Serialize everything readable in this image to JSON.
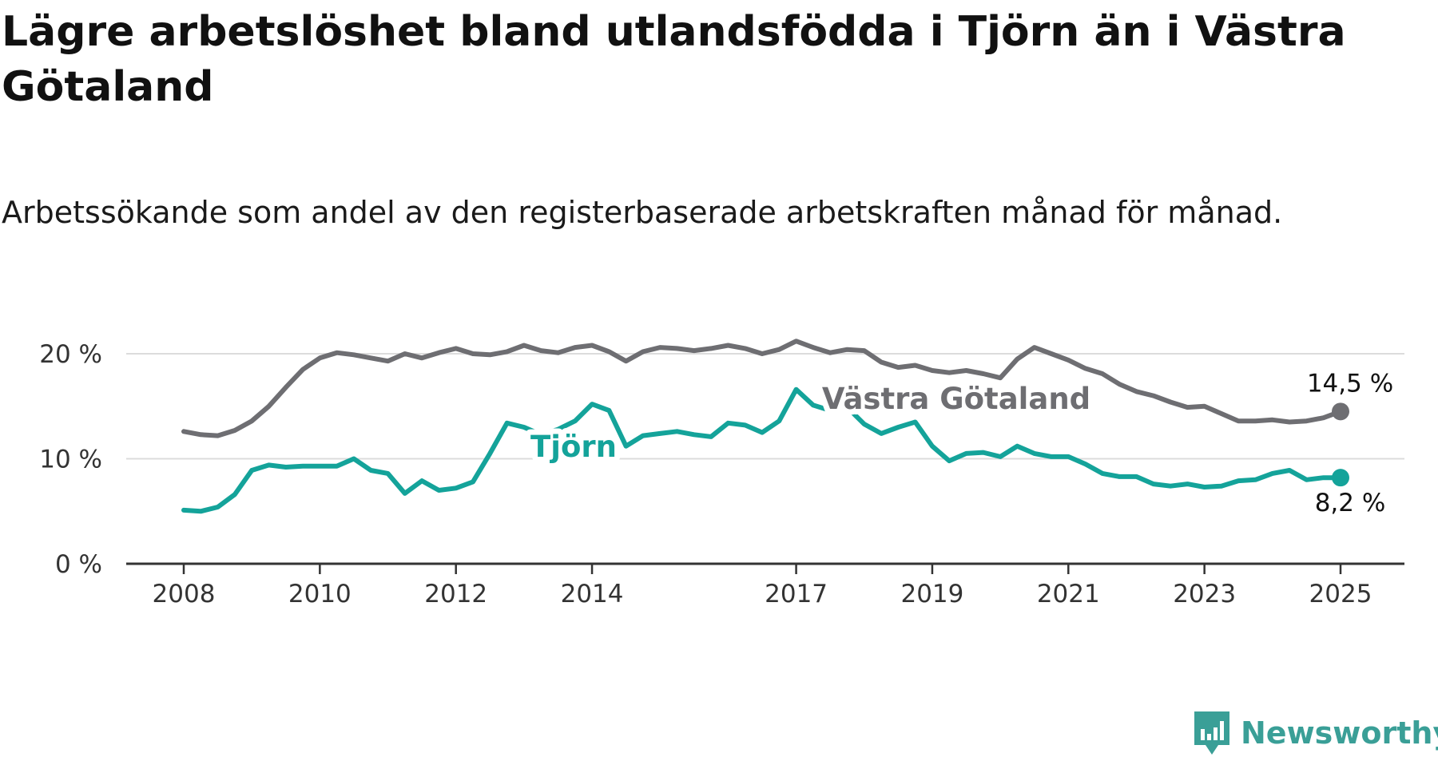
{
  "title": "Lägre arbetslöshet bland utlandsfödda i Tjörn än i Västra Götaland",
  "subtitle": "Arbetssökande som andel av den registerbaserade arbetskraften månad för månad.",
  "brand": {
    "name": "Newsworthy",
    "icon": "newsworthy-logo-icon",
    "color": "#3a9f97"
  },
  "chart_data": {
    "type": "line",
    "y_ticks": [
      {
        "value": 0,
        "label": "0 %"
      },
      {
        "value": 10,
        "label": "10 %"
      },
      {
        "value": 20,
        "label": "20 %"
      }
    ],
    "ylim": [
      0,
      21.5
    ],
    "x_ticks": [
      {
        "value": 2008.0,
        "label": "2008"
      },
      {
        "value": 2010.0,
        "label": "2010"
      },
      {
        "value": 2012.0,
        "label": "2012"
      },
      {
        "value": 2014.0,
        "label": "2014"
      },
      {
        "value": 2017.0,
        "label": "2017"
      },
      {
        "value": 2019.0,
        "label": "2019"
      },
      {
        "value": 2021.0,
        "label": "2021"
      },
      {
        "value": 2023.0,
        "label": "2023"
      },
      {
        "value": 2025.0,
        "label": "2025"
      }
    ],
    "xlim": [
      2007.85,
      2026.0
    ],
    "grid": true,
    "series": [
      {
        "name": "Västra Götaland",
        "color": "#6e6e72",
        "end_label": "14,5 %",
        "x": [
          2008.0,
          2008.25,
          2008.5,
          2008.75,
          2009.0,
          2009.25,
          2009.5,
          2009.75,
          2010.0,
          2010.25,
          2010.5,
          2010.75,
          2011.0,
          2011.25,
          2011.5,
          2011.75,
          2012.0,
          2012.25,
          2012.5,
          2012.75,
          2013.0,
          2013.25,
          2013.5,
          2013.75,
          2014.0,
          2014.25,
          2014.5,
          2014.75,
          2015.0,
          2015.25,
          2015.5,
          2015.75,
          2016.0,
          2016.25,
          2016.5,
          2016.75,
          2017.0,
          2017.25,
          2017.5,
          2017.75,
          2018.0,
          2018.25,
          2018.5,
          2018.75,
          2019.0,
          2019.25,
          2019.5,
          2019.75,
          2020.0,
          2020.25,
          2020.5,
          2020.75,
          2021.0,
          2021.25,
          2021.5,
          2021.75,
          2022.0,
          2022.25,
          2022.5,
          2022.75,
          2023.0,
          2023.25,
          2023.5,
          2023.75,
          2024.0,
          2024.25,
          2024.5,
          2024.75,
          2025.0
        ],
        "y": [
          12.6,
          12.3,
          12.2,
          12.7,
          13.6,
          15.0,
          16.8,
          18.5,
          19.6,
          20.1,
          19.9,
          19.6,
          19.3,
          20.0,
          19.6,
          20.1,
          20.5,
          20.0,
          19.9,
          20.2,
          20.8,
          20.3,
          20.1,
          20.6,
          20.8,
          20.2,
          19.3,
          20.2,
          20.6,
          20.5,
          20.3,
          20.5,
          20.8,
          20.5,
          20.0,
          20.4,
          21.2,
          20.6,
          20.1,
          20.4,
          20.3,
          19.2,
          18.7,
          18.9,
          18.4,
          18.2,
          18.4,
          18.1,
          17.7,
          19.5,
          20.6,
          20.0,
          19.4,
          18.6,
          18.1,
          17.1,
          16.4,
          16.0,
          15.4,
          14.9,
          15.0,
          14.3,
          13.6,
          13.6,
          13.7,
          13.5,
          13.6,
          13.9,
          14.5
        ]
      },
      {
        "name": "Tjörn",
        "color": "#14a39a",
        "end_label": "8,2 %",
        "x": [
          2008.0,
          2008.25,
          2008.5,
          2008.75,
          2009.0,
          2009.25,
          2009.5,
          2009.75,
          2010.0,
          2010.25,
          2010.5,
          2010.75,
          2011.0,
          2011.25,
          2011.5,
          2011.75,
          2012.0,
          2012.25,
          2012.5,
          2012.75,
          2013.0,
          2013.25,
          2013.5,
          2013.75,
          2014.0,
          2014.25,
          2014.5,
          2014.75,
          2015.0,
          2015.25,
          2015.5,
          2015.75,
          2016.0,
          2016.25,
          2016.5,
          2016.75,
          2017.0,
          2017.25,
          2017.5,
          2017.75,
          2018.0,
          2018.25,
          2018.5,
          2018.75,
          2019.0,
          2019.25,
          2019.5,
          2019.75,
          2020.0,
          2020.25,
          2020.5,
          2020.75,
          2021.0,
          2021.25,
          2021.5,
          2021.75,
          2022.0,
          2022.25,
          2022.5,
          2022.75,
          2023.0,
          2023.25,
          2023.5,
          2023.75,
          2024.0,
          2024.25,
          2024.5,
          2024.75,
          2025.0
        ],
        "y": [
          5.1,
          5.0,
          5.4,
          6.6,
          8.9,
          9.4,
          9.2,
          9.3,
          9.3,
          9.3,
          10.0,
          8.9,
          8.6,
          6.7,
          7.9,
          7.0,
          7.2,
          7.8,
          10.5,
          13.4,
          13.0,
          12.3,
          12.8,
          13.6,
          15.2,
          14.6,
          11.2,
          12.2,
          12.4,
          12.6,
          12.3,
          12.1,
          13.4,
          13.2,
          12.5,
          13.6,
          16.6,
          15.1,
          14.6,
          14.9,
          13.3,
          12.4,
          13.0,
          13.5,
          11.2,
          9.8,
          10.5,
          10.6,
          10.2,
          11.2,
          10.5,
          10.2,
          10.2,
          9.5,
          8.6,
          8.3,
          8.3,
          7.6,
          7.4,
          7.6,
          7.3,
          7.4,
          7.9,
          8.0,
          8.6,
          8.9,
          8.0,
          8.2,
          8.2
        ]
      }
    ],
    "series_labels": [
      {
        "text": "Västra Götaland",
        "series": "Västra Götaland"
      },
      {
        "text": "Tjörn",
        "series": "Tjörn"
      }
    ]
  }
}
